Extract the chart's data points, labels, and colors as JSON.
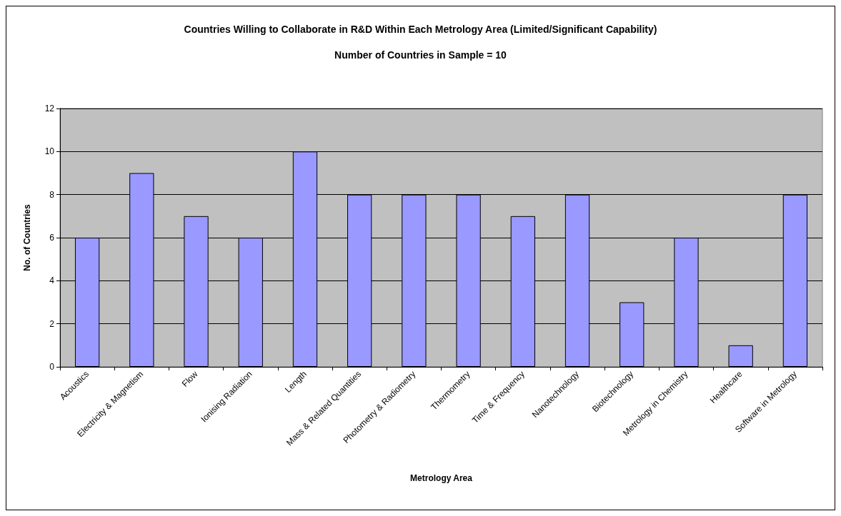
{
  "chart_data": {
    "type": "bar",
    "title": "Countries Willing to Collaborate in R&D Within Each Metrology Area (Limited/Significant Capability)",
    "subtitle": "Number of Countries in Sample = 10",
    "xlabel": "Metrology Area",
    "ylabel": "No. of Countries",
    "categories": [
      "Acoustics",
      "Electricity & Magnetism",
      "Flow",
      "Ionising Radiation",
      "Length",
      "Mass & Related Quantities",
      "Photometry & Radiometry",
      "Thermometry",
      "Time & Frequency",
      "Nanotechnology",
      "Biotechnology",
      "Metrology in Chemistry",
      "Healthcare",
      "Software in Metrology"
    ],
    "values": [
      6,
      9,
      7,
      6,
      10,
      8,
      8,
      8,
      7,
      8,
      3,
      6,
      1,
      8
    ],
    "color": "#9999ff",
    "ylim": [
      0,
      12
    ],
    "yticks": [
      0,
      2,
      4,
      6,
      8,
      10,
      12
    ],
    "grid": "y"
  }
}
